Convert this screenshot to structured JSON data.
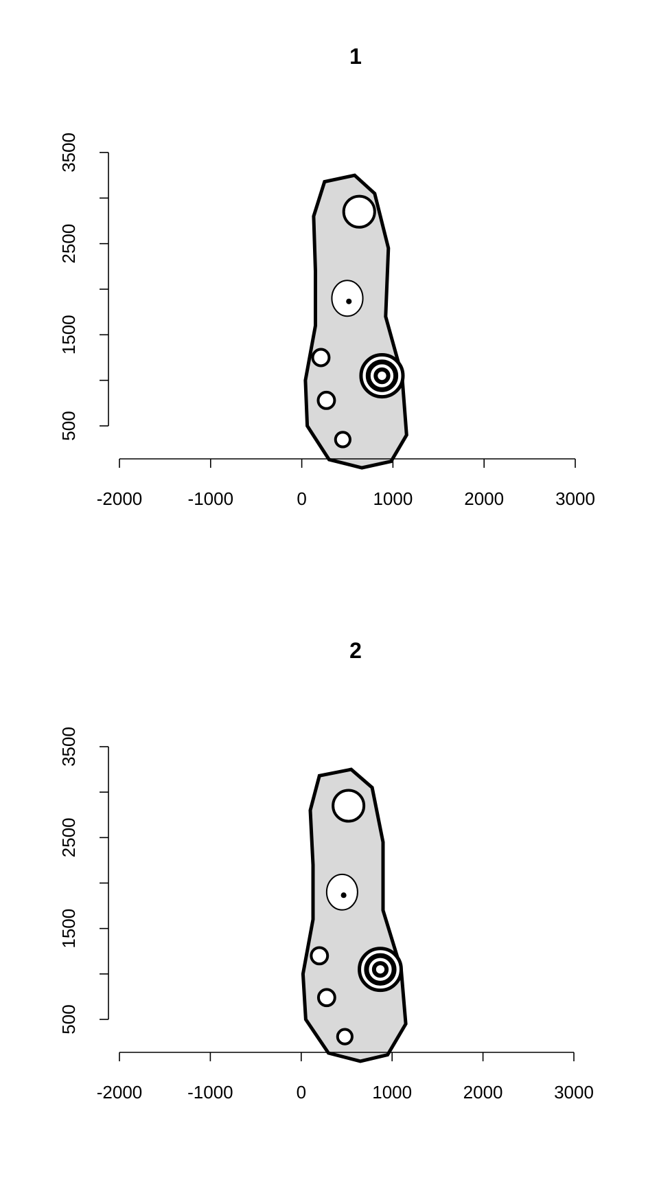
{
  "chart_data": [
    {
      "type": "scatter",
      "title": "1",
      "xlabel": "",
      "ylabel": "",
      "xlim": [
        -2000,
        3000
      ],
      "ylim": [
        3500,
        500
      ],
      "y_inverted": true,
      "xticks": [
        -2000,
        -1000,
        0,
        1000,
        2000,
        3000
      ],
      "xtick_labels": [
        "-2000",
        "-1000",
        "0",
        "1000",
        "2000",
        "3000"
      ],
      "yticks": [
        500,
        1500,
        2500,
        3500
      ],
      "ytick_labels": [
        "500",
        "1500",
        "2500",
        "3500"
      ],
      "y_minor_ticks": [
        1000,
        2000,
        3000
      ],
      "background_image": "shoe-sole-print",
      "sole_outline": [
        [
          660,
          40
        ],
        [
          980,
          110
        ],
        [
          1150,
          400
        ],
        [
          1100,
          1050
        ],
        [
          920,
          1700
        ],
        [
          950,
          2450
        ],
        [
          800,
          3050
        ],
        [
          580,
          3250
        ],
        [
          250,
          3180
        ],
        [
          130,
          2800
        ],
        [
          150,
          2200
        ],
        [
          150,
          1600
        ],
        [
          40,
          1000
        ],
        [
          60,
          500
        ],
        [
          300,
          130
        ]
      ],
      "marks": [
        {
          "x": 450,
          "y": 350,
          "r": 80,
          "kind": "circle"
        },
        {
          "x": 270,
          "y": 780,
          "r": 90,
          "kind": "circle"
        },
        {
          "x": 210,
          "y": 1250,
          "r": 90,
          "kind": "circle"
        },
        {
          "x": 880,
          "y": 1050,
          "r": 230,
          "kind": "target"
        },
        {
          "x": 500,
          "y": 1900,
          "r": 170,
          "kind": "logo"
        },
        {
          "x": 630,
          "y": 2850,
          "r": 170,
          "kind": "circle"
        }
      ]
    },
    {
      "type": "scatter",
      "title": "2",
      "xlabel": "",
      "ylabel": "",
      "xlim": [
        -2000,
        3000
      ],
      "ylim": [
        3500,
        500
      ],
      "y_inverted": true,
      "xticks": [
        -2000,
        -1000,
        0,
        1000,
        2000,
        3000
      ],
      "xtick_labels": [
        "-2000",
        "-1000",
        "0",
        "1000",
        "2000",
        "3000"
      ],
      "yticks": [
        500,
        1500,
        2500,
        3500
      ],
      "ytick_labels": [
        "500",
        "1500",
        "2500",
        "3500"
      ],
      "y_minor_ticks": [
        1000,
        2000,
        3000
      ],
      "background_image": "shoe-sole-print",
      "sole_outline": [
        [
          650,
          40
        ],
        [
          950,
          110
        ],
        [
          1150,
          450
        ],
        [
          1100,
          1050
        ],
        [
          900,
          1700
        ],
        [
          900,
          2450
        ],
        [
          780,
          3050
        ],
        [
          550,
          3250
        ],
        [
          200,
          3180
        ],
        [
          100,
          2800
        ],
        [
          130,
          2200
        ],
        [
          130,
          1600
        ],
        [
          20,
          1000
        ],
        [
          50,
          500
        ],
        [
          300,
          130
        ]
      ],
      "marks": [
        {
          "x": 480,
          "y": 310,
          "r": 80,
          "kind": "circle"
        },
        {
          "x": 280,
          "y": 740,
          "r": 90,
          "kind": "circle"
        },
        {
          "x": 200,
          "y": 1200,
          "r": 90,
          "kind": "circle"
        },
        {
          "x": 870,
          "y": 1050,
          "r": 230,
          "kind": "target"
        },
        {
          "x": 450,
          "y": 1900,
          "r": 170,
          "kind": "logo"
        },
        {
          "x": 520,
          "y": 2850,
          "r": 170,
          "kind": "circle"
        }
      ]
    }
  ]
}
